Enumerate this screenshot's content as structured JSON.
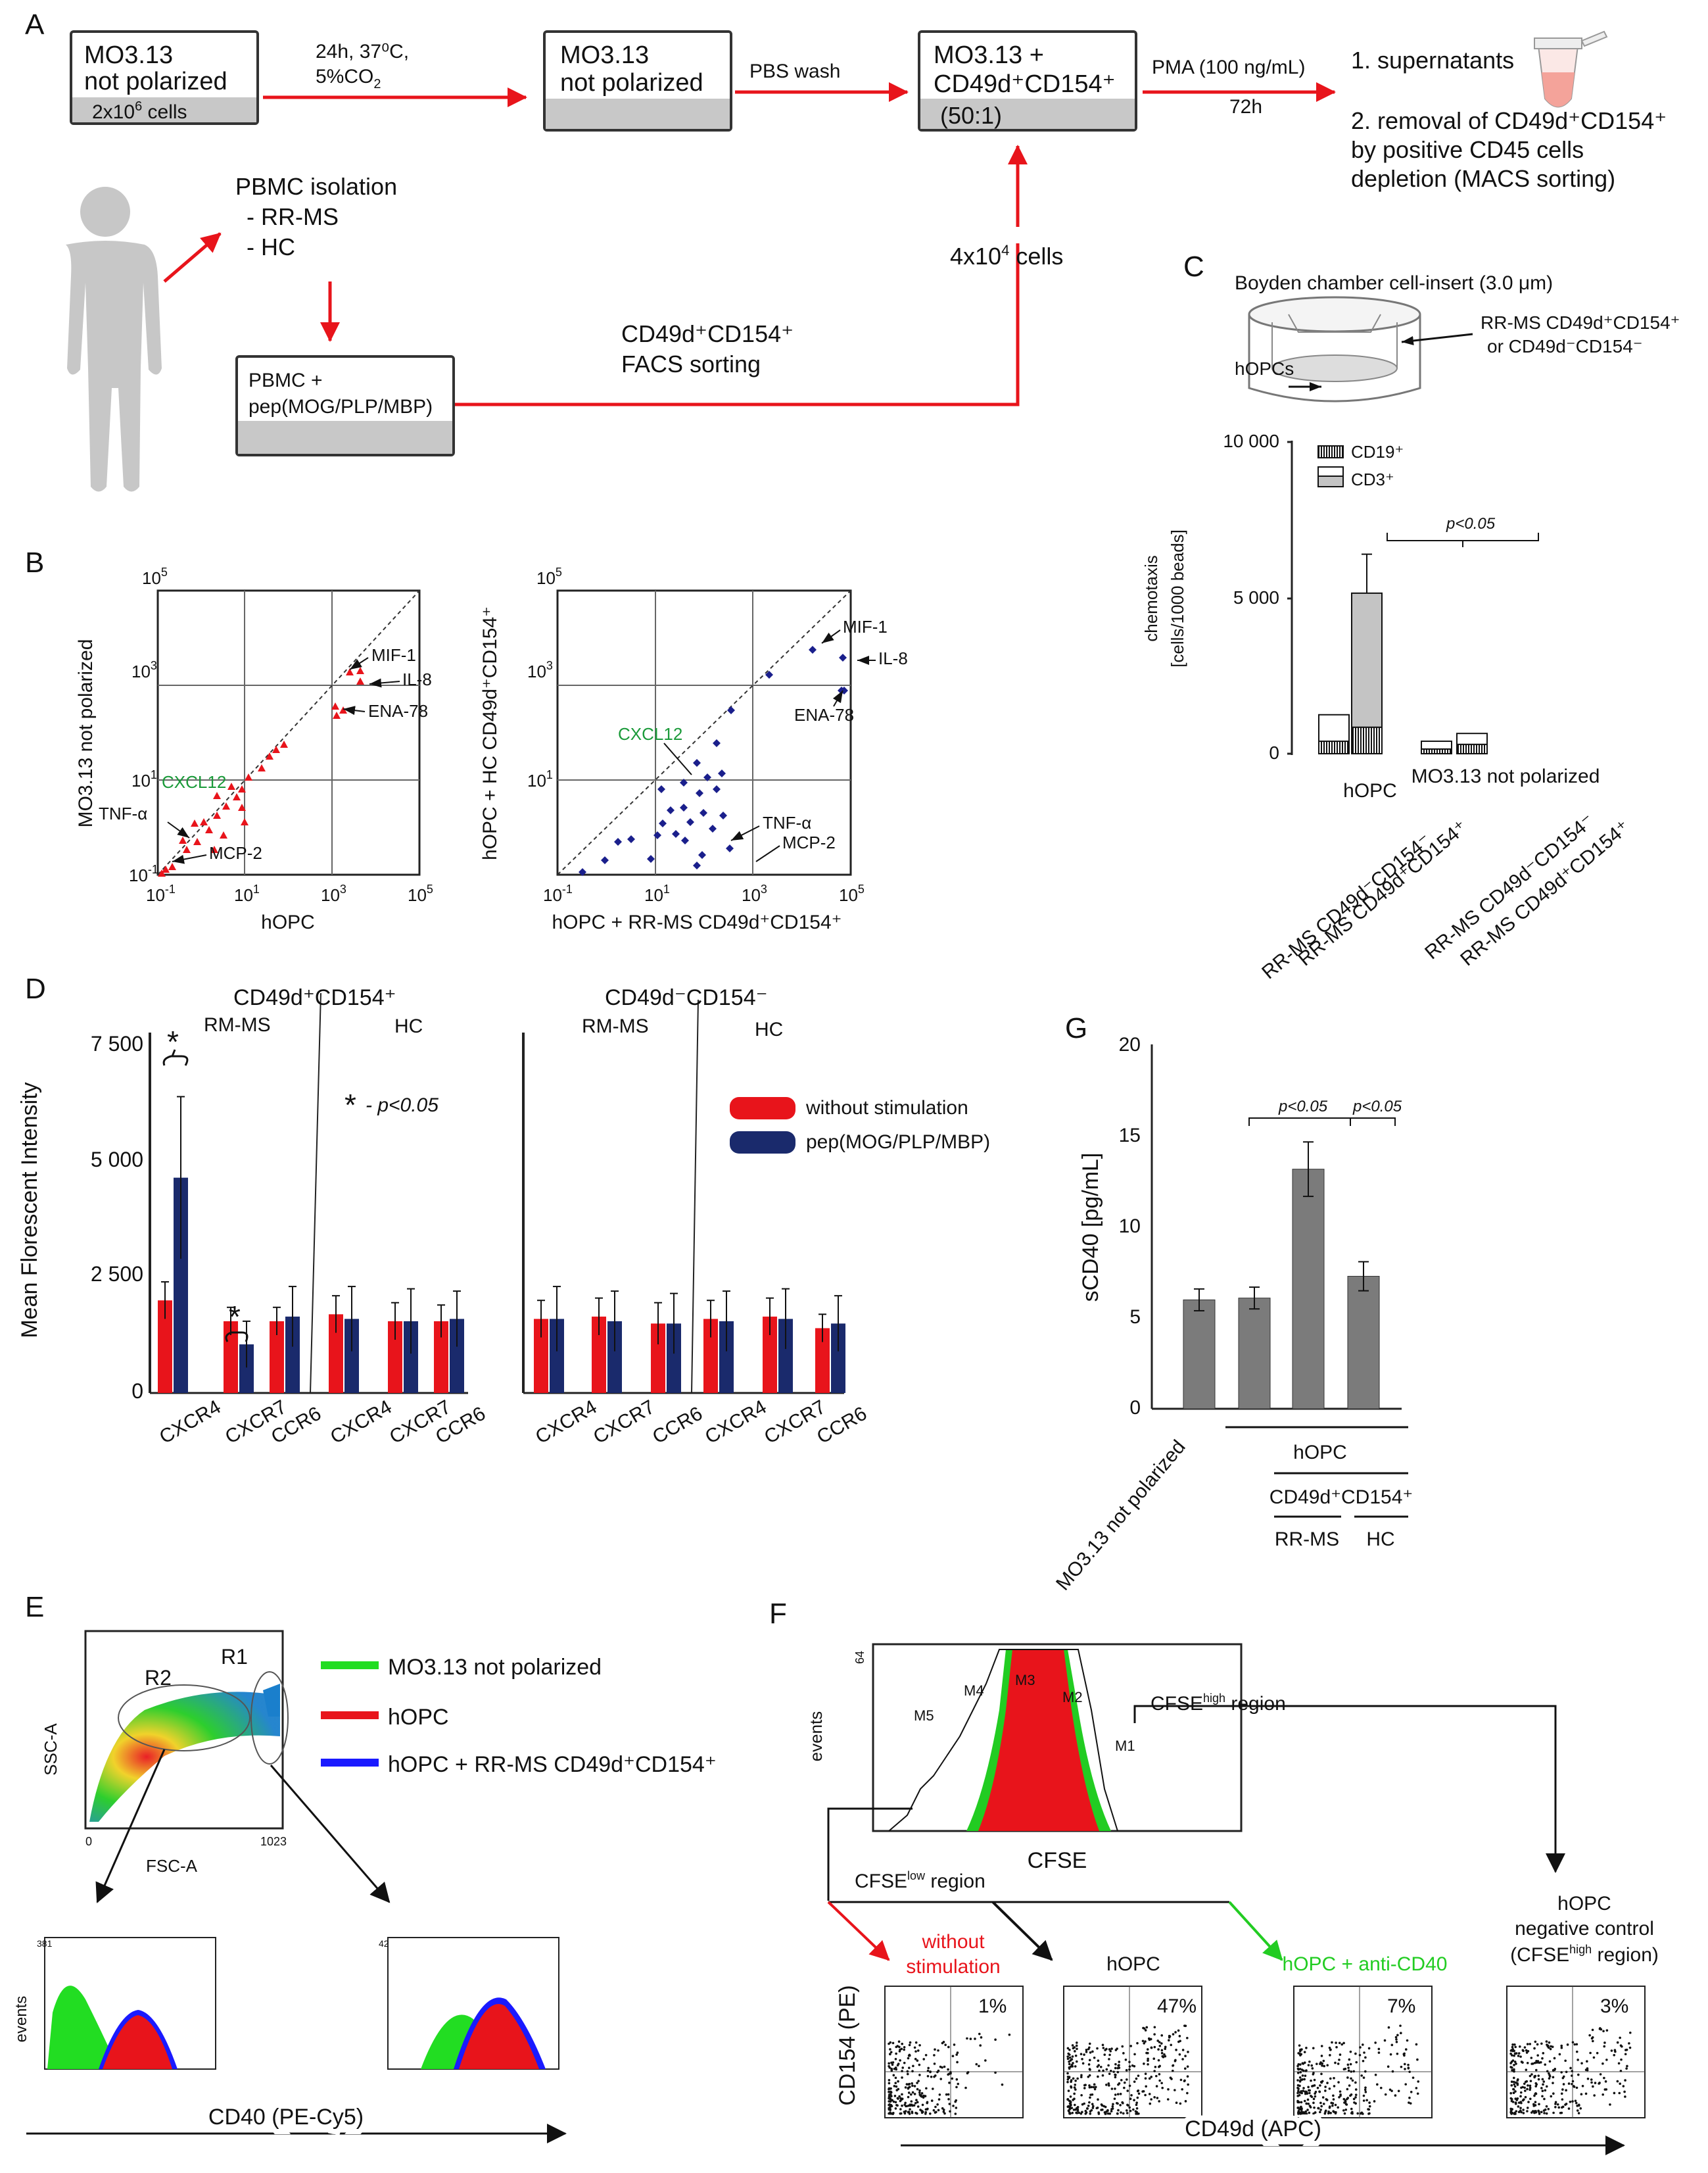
{
  "panels": {
    "a": "A",
    "b": "B",
    "c": "C",
    "d": "D",
    "e": "E",
    "f": "F",
    "g": "G"
  },
  "panel_a": {
    "box1_l1": "MO3.13",
    "box1_l2": "not polarized",
    "box1_cells_pre": "2x10",
    "box1_cells_sup": "6",
    "box1_cells_post": " cells",
    "arrow1_l1": "24h, 37⁰C,",
    "arrow1_l2_pre": "5%CO",
    "arrow1_l2_sub": "2",
    "box2_l1": "MO3.13",
    "box2_l2": "not polarized",
    "arrow2": "PBS wash",
    "box3_l1": "MO3.13 +",
    "box3_l2": "CD49d⁺CD154⁺",
    "box3_ratio": "(50:1)",
    "arrow3_l1": "PMA (100 ng/mL)",
    "arrow3_l2": "72h",
    "step1": "1. supernatants",
    "step2_l1": "2. removal of CD49d⁺CD154⁺",
    "step2_l2": "by positive CD45 cells",
    "step2_l3": "depletion (MACS sorting)",
    "pbmc_title": "PBMC isolation",
    "pbmc_rr": "- RR-MS",
    "pbmc_hc": "- HC",
    "box4_l1": "PBMC +",
    "box4_l2": "pep(MOG/PLP/MBP)",
    "facs_l1": "CD49d⁺CD154⁺",
    "facs_l2": "FACS sorting",
    "cells_pre": "4x10",
    "cells_sup": "4",
    "cells_post": " cells"
  },
  "panel_b": {
    "left": {
      "ylabel": "MO3.13 not polarized",
      "xlabel": "hOPC",
      "ticks": [
        {
          "base": "10",
          "exp": "-1"
        },
        {
          "base": "10",
          "exp": "1"
        },
        {
          "base": "10",
          "exp": "3"
        },
        {
          "base": "10",
          "exp": "5"
        }
      ],
      "labels": [
        "MIF-1",
        "IL-8",
        "ENA-78",
        "CXCL12",
        "TNF-α",
        "MCP-2"
      ],
      "color": "#e8141b"
    },
    "right": {
      "ylabel": "hOPC + HC CD49d⁺CD154⁺",
      "xlabel": "hOPC + RR-MS CD49d⁺CD154⁺",
      "ticks": [
        {
          "base": "10",
          "exp": "-1"
        },
        {
          "base": "10",
          "exp": "1"
        },
        {
          "base": "10",
          "exp": "3"
        },
        {
          "base": "10",
          "exp": "5"
        }
      ],
      "labels": [
        "MIF-1",
        "IL-8",
        "ENA-78",
        "CXCL12",
        "TNF-α",
        "MCP-2"
      ],
      "color": "#1a1f8c"
    },
    "label_color_green": "#1b9a3a"
  },
  "panel_c": {
    "title": "Boyden chamber cell-insert (3.0 μm)",
    "ann1": "RR-MS CD49d⁺CD154⁺",
    "ann2": "or CD49d⁻CD154⁻",
    "ann_hopc": "hOPCs",
    "legend": [
      "CD19⁺",
      "CD3⁺"
    ],
    "ylabel_l1": "chemotaxis",
    "ylabel_l2": "[cells/1000 beads]",
    "yticks": [
      "0",
      "5 000",
      "10 000"
    ],
    "sig": "p<0.05",
    "groups": [
      "hOPC",
      "MO3.13 not polarized"
    ],
    "categories": [
      "RR-MS CD49d⁻CD154⁻",
      "RR-MS CD49d⁺CD154⁺",
      "RR-MS CD49d⁻CD154⁻",
      "RR-MS CD49d⁺CD154⁺"
    ]
  },
  "chart_data": [
    {
      "type": "bar",
      "panel": "C",
      "title": "Boyden chamber cell-insert (3.0 μm)",
      "ylabel": "chemotaxis [cells/1000 beads]",
      "ylim": [
        0,
        10000
      ],
      "categories": [
        "hOPC RR-MS CD49d⁻CD154⁻",
        "hOPC RR-MS CD49d⁺CD154⁺",
        "MO3.13 RR-MS CD49d⁻CD154⁻",
        "MO3.13 RR-MS CD49d⁺CD154⁺"
      ],
      "series": [
        {
          "name": "CD19⁺",
          "values": [
            400,
            850,
            150,
            300
          ]
        },
        {
          "name": "CD3⁺",
          "values": [
            850,
            4300,
            250,
            350
          ]
        }
      ],
      "totals": [
        1250,
        5150,
        400,
        650
      ],
      "errors": [
        0,
        1250,
        0,
        0
      ]
    },
    {
      "type": "bar",
      "panel": "D",
      "ylabel": "Mean Florescent Intensity",
      "ylim": [
        0,
        7500
      ],
      "yticks": [
        "0",
        "2 500",
        "5 000",
        "7 500"
      ],
      "groups": [
        "CD49d⁺CD154⁺",
        "CD49d⁻CD154⁻"
      ],
      "subgroups": [
        "RM-MS",
        "HC"
      ],
      "categories": [
        "CXCR4",
        "CXCR7",
        "CCR6",
        "CXCR4",
        "CXCR7",
        "CCR6",
        "CXCR4",
        "CXCR7",
        "CCR6",
        "CXCR4",
        "CXCR7",
        "CCR6"
      ],
      "series": [
        {
          "name": "without stimulation",
          "color": "#e8141b",
          "values": [
            2000,
            1550,
            1550,
            1700,
            1550,
            1550,
            1600,
            1650,
            1500,
            1600,
            1650,
            1400
          ],
          "errors": [
            400,
            300,
            300,
            400,
            400,
            350,
            400,
            400,
            450,
            400,
            400,
            300
          ]
        },
        {
          "name": "pep(MOG/PLP/MBP)",
          "color": "#1a2a6c",
          "values": [
            4650,
            1050,
            1650,
            1600,
            1550,
            1600,
            1600,
            1550,
            1500,
            1550,
            1600,
            1500
          ],
          "errors": [
            1750,
            500,
            650,
            700,
            700,
            600,
            700,
            650,
            650,
            650,
            650,
            600
          ]
        }
      ],
      "sig_marks": [
        "*",
        "*"
      ],
      "legend_note": "* - p<0.05"
    },
    {
      "type": "bar",
      "panel": "G",
      "ylabel": "sCD40 [pg/mL]",
      "ylim": [
        0,
        20
      ],
      "yticks": [
        "0",
        "5",
        "10",
        "15",
        "20"
      ],
      "categories": [
        "MO3.13 not polarized",
        "hOPC",
        "hOPC + RR-MS CD49d⁺CD154⁺",
        "hOPC + HC CD49d⁺CD154⁺"
      ],
      "values": [
        6.0,
        6.1,
        13.2,
        7.3
      ],
      "errors": [
        0.6,
        0.6,
        1.5,
        0.8
      ],
      "sig": [
        "p<0.05",
        "p<0.05"
      ]
    }
  ],
  "panel_d": {
    "group1": "CD49d⁺CD154⁺",
    "group2": "CD49d⁻CD154⁻",
    "rm": "RM-MS",
    "hc": "HC",
    "star": "*",
    "sig_note": "- p<0.05",
    "legend1": "without stimulation",
    "legend2": "pep(MOG/PLP/MBP)",
    "ylabel": "Mean Florescent Intensity",
    "yticks": [
      "0",
      "2 500",
      "5 000",
      "7 500"
    ],
    "cats": [
      "CXCR4",
      "CXCR7",
      "CCR6"
    ]
  },
  "panel_g": {
    "ylabel": "sCD40 [pg/mL]",
    "yticks": [
      "0",
      "5",
      "10",
      "15",
      "20"
    ],
    "sig": "p<0.05",
    "xlab1": "MO3.13 not polarized",
    "xlab_hopc": "hOPC",
    "xlab_cd": "CD49d⁺CD154⁺",
    "xlab_rr": "RR-MS",
    "xlab_hc": "HC"
  },
  "panel_e": {
    "ssc": "SSC-A",
    "fsc": "FSC-A",
    "r1": "R1",
    "r2": "R2",
    "tick_end": "1023",
    "tick0": "0",
    "legend": [
      "MO3.13 not polarized",
      "hOPC",
      "hOPC + RR-MS CD49d⁺CD154⁺"
    ],
    "colors": [
      "#22dd22",
      "#e8141b",
      "#1a1aff"
    ],
    "events": "events",
    "h1_max": "381",
    "h2_max": "42",
    "xlabel": "CD40 (PE-Cy5)"
  },
  "panel_f": {
    "events": "events",
    "ymax": "64",
    "xlabel": "CFSE",
    "markers": [
      "M1",
      "M2",
      "M3",
      "M4",
      "M5"
    ],
    "high_pre": "CFSE",
    "high_sup": "high",
    "high_post": " region",
    "low_pre": "CFSE",
    "low_sup": "low",
    "low_post": " region",
    "d1_l1": "without",
    "d1_l2": "stimulation",
    "d1_pct": "1%",
    "d2_l1": "hOPC",
    "d2_pct": "47%",
    "d3_l1": "hOPC + anti-CD40",
    "d3_pct": "7%",
    "d4_l1": "hOPC",
    "d4_l2": "negative control",
    "d4_l3_pre": "(CFSE",
    "d4_l3_sup": "high",
    "d4_l3_post": " region)",
    "d4_pct": "3%",
    "ylabel": "CD154 (PE)",
    "xlabel2": "CD49d (APC)",
    "red": "#e8141b",
    "green": "#22cc22"
  }
}
